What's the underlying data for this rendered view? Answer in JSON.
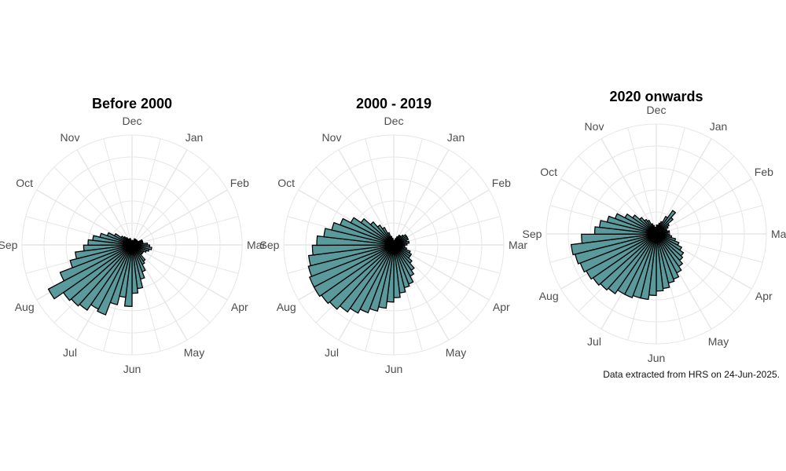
{
  "caption": "Data extracted from HRS on 24-Jun-2025.",
  "colors": {
    "bar_fill": "#5a9a9c",
    "bar_stroke": "#000000",
    "grid": "#e6e6e6",
    "month_label": "#4d4d4d",
    "title": "#000000"
  },
  "chart_data": [
    {
      "type": "bar",
      "coord": "polar",
      "title": "Before 2000",
      "categories": [
        "Jan",
        "Feb",
        "Mar",
        "Apr",
        "May",
        "Jun",
        "Jul",
        "Aug",
        "Sep",
        "Oct",
        "Nov",
        "Dec"
      ],
      "value_note": "weekly bars, angular position in days of year",
      "grid": true,
      "rmax": 5,
      "bars": [
        {
          "day": 18,
          "v": 0.2
        },
        {
          "day": 25,
          "v": 0.3
        },
        {
          "day": 32,
          "v": 0.2
        },
        {
          "day": 39,
          "v": 0.3
        },
        {
          "day": 46,
          "v": 0.2
        },
        {
          "day": 53,
          "v": 0.3
        },
        {
          "day": 60,
          "v": 0.3
        },
        {
          "day": 67,
          "v": 0.5
        },
        {
          "day": 74,
          "v": 0.5
        },
        {
          "day": 81,
          "v": 0.5
        },
        {
          "day": 88,
          "v": 0.7
        },
        {
          "day": 95,
          "v": 0.8
        },
        {
          "day": 102,
          "v": 0.9
        },
        {
          "day": 109,
          "v": 0.8
        },
        {
          "day": 116,
          "v": 0.7
        },
        {
          "day": 123,
          "v": 0.6
        },
        {
          "day": 130,
          "v": 0.6
        },
        {
          "day": 137,
          "v": 0.6
        },
        {
          "day": 144,
          "v": 0.9
        },
        {
          "day": 151,
          "v": 1.0
        },
        {
          "day": 158,
          "v": 1.3
        },
        {
          "day": 165,
          "v": 1.6
        },
        {
          "day": 172,
          "v": 2.0
        },
        {
          "day": 179,
          "v": 2.2
        },
        {
          "day": 186,
          "v": 2.8
        },
        {
          "day": 193,
          "v": 2.4
        },
        {
          "day": 200,
          "v": 2.8
        },
        {
          "day": 207,
          "v": 3.4
        },
        {
          "day": 214,
          "v": 3.3
        },
        {
          "day": 221,
          "v": 3.6
        },
        {
          "day": 228,
          "v": 3.7
        },
        {
          "day": 235,
          "v": 3.8
        },
        {
          "day": 242,
          "v": 4.3
        },
        {
          "day": 249,
          "v": 3.5
        },
        {
          "day": 256,
          "v": 2.9
        },
        {
          "day": 263,
          "v": 2.6
        },
        {
          "day": 270,
          "v": 2.2
        },
        {
          "day": 277,
          "v": 2.0
        },
        {
          "day": 284,
          "v": 1.8
        },
        {
          "day": 291,
          "v": 1.5
        },
        {
          "day": 298,
          "v": 1.2
        },
        {
          "day": 305,
          "v": 0.9
        },
        {
          "day": 312,
          "v": 0.6
        },
        {
          "day": 319,
          "v": 0.5
        },
        {
          "day": 326,
          "v": 0.4
        },
        {
          "day": 333,
          "v": 0.3
        },
        {
          "day": 340,
          "v": 0.3
        },
        {
          "day": 347,
          "v": 0.3
        },
        {
          "day": 354,
          "v": 0.2
        },
        {
          "day": 361,
          "v": 0.2
        },
        {
          "day": 4,
          "v": 0.2
        },
        {
          "day": 11,
          "v": 0.2
        }
      ]
    },
    {
      "type": "bar",
      "coord": "polar",
      "title": "2000 - 2019",
      "categories": [
        "Jan",
        "Feb",
        "Mar",
        "Apr",
        "May",
        "Jun",
        "Jul",
        "Aug",
        "Sep",
        "Oct",
        "Nov",
        "Dec"
      ],
      "value_note": "weekly bars, angular position in days of year",
      "grid": true,
      "rmax": 5,
      "bars": [
        {
          "day": 18,
          "v": 0.3
        },
        {
          "day": 25,
          "v": 0.4
        },
        {
          "day": 32,
          "v": 0.5
        },
        {
          "day": 39,
          "v": 0.5
        },
        {
          "day": 46,
          "v": 0.6
        },
        {
          "day": 53,
          "v": 0.7
        },
        {
          "day": 60,
          "v": 0.7
        },
        {
          "day": 67,
          "v": 0.7
        },
        {
          "day": 74,
          "v": 0.6
        },
        {
          "day": 81,
          "v": 0.7
        },
        {
          "day": 88,
          "v": 0.6
        },
        {
          "day": 95,
          "v": 0.5
        },
        {
          "day": 102,
          "v": 0.5
        },
        {
          "day": 109,
          "v": 0.6
        },
        {
          "day": 116,
          "v": 0.8
        },
        {
          "day": 123,
          "v": 0.9
        },
        {
          "day": 130,
          "v": 0.9
        },
        {
          "day": 137,
          "v": 1.1
        },
        {
          "day": 144,
          "v": 1.4
        },
        {
          "day": 151,
          "v": 1.6
        },
        {
          "day": 158,
          "v": 1.9
        },
        {
          "day": 165,
          "v": 2.0
        },
        {
          "day": 172,
          "v": 2.2
        },
        {
          "day": 179,
          "v": 2.4
        },
        {
          "day": 186,
          "v": 2.6
        },
        {
          "day": 193,
          "v": 2.9
        },
        {
          "day": 200,
          "v": 3.1
        },
        {
          "day": 207,
          "v": 3.3
        },
        {
          "day": 214,
          "v": 3.5
        },
        {
          "day": 221,
          "v": 3.7
        },
        {
          "day": 228,
          "v": 3.9
        },
        {
          "day": 235,
          "v": 4.0
        },
        {
          "day": 242,
          "v": 4.1
        },
        {
          "day": 249,
          "v": 4.1
        },
        {
          "day": 256,
          "v": 4.0
        },
        {
          "day": 263,
          "v": 3.9
        },
        {
          "day": 270,
          "v": 3.7
        },
        {
          "day": 277,
          "v": 3.5
        },
        {
          "day": 284,
          "v": 3.2
        },
        {
          "day": 291,
          "v": 2.9
        },
        {
          "day": 298,
          "v": 2.6
        },
        {
          "day": 305,
          "v": 2.2
        },
        {
          "day": 312,
          "v": 1.8
        },
        {
          "day": 319,
          "v": 1.4
        },
        {
          "day": 326,
          "v": 1.1
        },
        {
          "day": 333,
          "v": 0.9
        },
        {
          "day": 340,
          "v": 0.6
        },
        {
          "day": 347,
          "v": 0.4
        },
        {
          "day": 354,
          "v": 0.3
        },
        {
          "day": 361,
          "v": 0.2
        },
        {
          "day": 4,
          "v": 0.2
        },
        {
          "day": 11,
          "v": 0.2
        }
      ]
    },
    {
      "type": "bar",
      "coord": "polar",
      "title": "2020 onwards",
      "categories": [
        "Jan",
        "Feb",
        "Mar",
        "Apr",
        "May",
        "Jun",
        "Jul",
        "Aug",
        "Sep",
        "Oct",
        "Nov",
        "Dec"
      ],
      "value_note": "weekly bars, angular position in days of year",
      "grid": true,
      "rmax": 5,
      "bars": [
        {
          "day": 18,
          "v": 0.5
        },
        {
          "day": 25,
          "v": 0.6
        },
        {
          "day": 32,
          "v": 0.9
        },
        {
          "day": 39,
          "v": 1.3
        },
        {
          "day": 46,
          "v": 1.0
        },
        {
          "day": 53,
          "v": 0.7
        },
        {
          "day": 60,
          "v": 0.6
        },
        {
          "day": 67,
          "v": 0.5
        },
        {
          "day": 74,
          "v": 0.5
        },
        {
          "day": 81,
          "v": 0.6
        },
        {
          "day": 88,
          "v": 0.5
        },
        {
          "day": 95,
          "v": 0.6
        },
        {
          "day": 102,
          "v": 0.7
        },
        {
          "day": 109,
          "v": 0.9
        },
        {
          "day": 116,
          "v": 1.1
        },
        {
          "day": 123,
          "v": 1.3
        },
        {
          "day": 130,
          "v": 1.5
        },
        {
          "day": 137,
          "v": 1.6
        },
        {
          "day": 144,
          "v": 1.8
        },
        {
          "day": 151,
          "v": 2.0
        },
        {
          "day": 158,
          "v": 2.2
        },
        {
          "day": 165,
          "v": 2.3
        },
        {
          "day": 172,
          "v": 2.5
        },
        {
          "day": 179,
          "v": 2.6
        },
        {
          "day": 186,
          "v": 2.8
        },
        {
          "day": 193,
          "v": 3.0
        },
        {
          "day": 200,
          "v": 3.0
        },
        {
          "day": 207,
          "v": 3.1
        },
        {
          "day": 214,
          "v": 3.1
        },
        {
          "day": 221,
          "v": 3.3
        },
        {
          "day": 228,
          "v": 3.4
        },
        {
          "day": 235,
          "v": 3.5
        },
        {
          "day": 242,
          "v": 3.6
        },
        {
          "day": 249,
          "v": 3.7
        },
        {
          "day": 256,
          "v": 3.8
        },
        {
          "day": 263,
          "v": 3.9
        },
        {
          "day": 270,
          "v": 3.4
        },
        {
          "day": 277,
          "v": 2.8
        },
        {
          "day": 284,
          "v": 2.6
        },
        {
          "day": 291,
          "v": 2.3
        },
        {
          "day": 298,
          "v": 2.0
        },
        {
          "day": 305,
          "v": 1.6
        },
        {
          "day": 312,
          "v": 1.3
        },
        {
          "day": 319,
          "v": 1.0
        },
        {
          "day": 326,
          "v": 0.8
        },
        {
          "day": 333,
          "v": 0.7
        },
        {
          "day": 340,
          "v": 0.5
        },
        {
          "day": 347,
          "v": 0.4
        },
        {
          "day": 354,
          "v": 0.3
        },
        {
          "day": 361,
          "v": 0.3
        },
        {
          "day": 4,
          "v": 0.4
        },
        {
          "day": 11,
          "v": 0.4
        }
      ]
    }
  ]
}
